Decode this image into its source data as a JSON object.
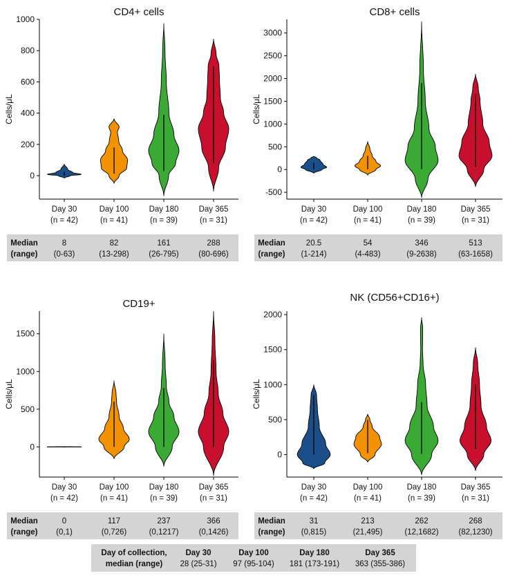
{
  "colors": {
    "day30": "#1b4f8a",
    "day100": "#f39200",
    "day180": "#3aaa35",
    "day365": "#c8102e",
    "table_bg": "#d4d4d4"
  },
  "chart_data": [
    {
      "type": "violin",
      "title": "CD4+ cells",
      "ylabel": "Cells/μL",
      "ylim": [
        -150,
        1000
      ],
      "yticks": [
        0,
        200,
        400,
        600,
        800,
        1000
      ],
      "categories": [
        {
          "day": "Day 30",
          "n": "(n = 42)"
        },
        {
          "day": "Day 100",
          "n": "(n = 41)"
        },
        {
          "day": "Day 180",
          "n": "(n = 39)"
        },
        {
          "day": "Day 365",
          "n": "(n = 31)"
        }
      ],
      "series": [
        {
          "color": "#1b4f8a",
          "range": [
            -15,
            75
          ],
          "whisker": [
            0,
            25
          ],
          "profile": [
            [
              -15,
              0
            ],
            [
              0,
              0.35
            ],
            [
              8,
              1
            ],
            [
              20,
              0.5
            ],
            [
              40,
              0.2
            ],
            [
              75,
              0
            ]
          ]
        },
        {
          "color": "#f39200",
          "range": [
            -50,
            365
          ],
          "whisker": [
            13,
            180
          ],
          "profile": [
            [
              -50,
              0
            ],
            [
              0,
              0.3
            ],
            [
              50,
              0.75
            ],
            [
              100,
              0.8
            ],
            [
              160,
              0.5
            ],
            [
              220,
              0.28
            ],
            [
              280,
              0.2
            ],
            [
              310,
              0.3
            ],
            [
              365,
              0
            ]
          ]
        },
        {
          "color": "#3aaa35",
          "range": [
            -130,
            975
          ],
          "whisker": [
            30,
            390
          ],
          "profile": [
            [
              -130,
              0
            ],
            [
              0,
              0.28
            ],
            [
              80,
              0.7
            ],
            [
              160,
              0.9
            ],
            [
              260,
              0.6
            ],
            [
              400,
              0.3
            ],
            [
              600,
              0.15
            ],
            [
              800,
              0.07
            ],
            [
              975,
              0
            ]
          ]
        },
        {
          "color": "#c8102e",
          "range": [
            -100,
            875
          ],
          "whisker": [
            80,
            700
          ],
          "profile": [
            [
              -100,
              0
            ],
            [
              50,
              0.3
            ],
            [
              180,
              0.7
            ],
            [
              300,
              0.9
            ],
            [
              400,
              0.6
            ],
            [
              500,
              0.4
            ],
            [
              620,
              0.35
            ],
            [
              700,
              0.32
            ],
            [
              780,
              0.15
            ],
            [
              875,
              0
            ]
          ]
        }
      ],
      "table": {
        "label1": "Median",
        "label2": "(range)",
        "rows": [
          [
            "8",
            "(0-63)"
          ],
          [
            "82",
            "(13-298)"
          ],
          [
            "161",
            "(26-795)"
          ],
          [
            "288",
            "(80-696)"
          ]
        ]
      }
    },
    {
      "type": "violin",
      "title": "CD8+ cells",
      "ylabel": "Cells/μL",
      "ylim": [
        -650,
        3300
      ],
      "yticks": [
        -500,
        0,
        500,
        1000,
        1500,
        2000,
        2500,
        3000
      ],
      "categories": [
        {
          "day": "Day 30",
          "n": "(n = 42)"
        },
        {
          "day": "Day 100",
          "n": "(n = 41)"
        },
        {
          "day": "Day 180",
          "n": "(n = 39)"
        },
        {
          "day": "Day 365",
          "n": "(n = 31)"
        }
      ],
      "series": [
        {
          "color": "#1b4f8a",
          "range": [
            -80,
            290
          ],
          "whisker": [
            1,
            150
          ],
          "profile": [
            [
              -80,
              0
            ],
            [
              0,
              0.45
            ],
            [
              50,
              0.7
            ],
            [
              120,
              0.5
            ],
            [
              200,
              0.35
            ],
            [
              260,
              0.15
            ],
            [
              290,
              0
            ]
          ]
        },
        {
          "color": "#f39200",
          "range": [
            -120,
            620
          ],
          "whisker": [
            4,
            300
          ],
          "profile": [
            [
              -120,
              0
            ],
            [
              0,
              0.45
            ],
            [
              80,
              0.7
            ],
            [
              180,
              0.45
            ],
            [
              300,
              0.25
            ],
            [
              450,
              0.12
            ],
            [
              620,
              0
            ]
          ]
        },
        {
          "color": "#3aaa35",
          "range": [
            -620,
            3250
          ],
          "whisker": [
            9,
            1900
          ],
          "profile": [
            [
              -620,
              0
            ],
            [
              -200,
              0.35
            ],
            [
              200,
              0.9
            ],
            [
              500,
              0.75
            ],
            [
              900,
              0.4
            ],
            [
              1500,
              0.2
            ],
            [
              2200,
              0.1
            ],
            [
              3250,
              0
            ]
          ]
        },
        {
          "color": "#c8102e",
          "range": [
            -380,
            2100
          ],
          "whisker": [
            63,
            1650
          ],
          "profile": [
            [
              -380,
              0
            ],
            [
              0,
              0.45
            ],
            [
              300,
              0.9
            ],
            [
              600,
              0.75
            ],
            [
              1000,
              0.4
            ],
            [
              1500,
              0.25
            ],
            [
              1800,
              0.15
            ],
            [
              2100,
              0
            ]
          ]
        }
      ],
      "table": {
        "label1": "Median",
        "label2": "(range)",
        "rows": [
          [
            "20.5",
            "(1-214)"
          ],
          [
            "54",
            "(4-483)"
          ],
          [
            "346",
            "(9-2638)"
          ],
          [
            "513",
            "(63-1658)"
          ]
        ]
      }
    },
    {
      "type": "violin",
      "title": "CD19+",
      "ylabel": "Cells/μL",
      "ylim": [
        -400,
        1800
      ],
      "yticks": [
        0,
        500,
        1000,
        1500
      ],
      "categories": [
        {
          "day": "Day 30",
          "n": "(n = 42)"
        },
        {
          "day": "Day 100",
          "n": "(n = 41)"
        },
        {
          "day": "Day 180",
          "n": "(n = 39)"
        },
        {
          "day": "Day 365",
          "n": "(n = 31)"
        }
      ],
      "series": [
        {
          "color": "#1b4f8a",
          "range": [
            -3,
            3
          ],
          "whisker": [
            0,
            1
          ],
          "profile": [
            [
              -3,
              0
            ],
            [
              -1,
              1
            ],
            [
              1,
              1
            ],
            [
              3,
              0
            ]
          ]
        },
        {
          "color": "#f39200",
          "range": [
            -160,
            880
          ],
          "whisker": [
            0,
            600
          ],
          "profile": [
            [
              -160,
              0
            ],
            [
              0,
              0.6
            ],
            [
              100,
              0.9
            ],
            [
              250,
              0.55
            ],
            [
              400,
              0.3
            ],
            [
              600,
              0.15
            ],
            [
              700,
              0.12
            ],
            [
              880,
              0
            ]
          ]
        },
        {
          "color": "#3aaa35",
          "range": [
            -260,
            1500
          ],
          "whisker": [
            0,
            780
          ],
          "profile": [
            [
              -260,
              0
            ],
            [
              0,
              0.5
            ],
            [
              200,
              0.9
            ],
            [
              400,
              0.6
            ],
            [
              600,
              0.3
            ],
            [
              800,
              0.15
            ],
            [
              1100,
              0.08
            ],
            [
              1500,
              0
            ]
          ]
        },
        {
          "color": "#c8102e",
          "range": [
            -380,
            1800
          ],
          "whisker": [
            0,
            1150
          ],
          "profile": [
            [
              -380,
              0
            ],
            [
              0,
              0.6
            ],
            [
              200,
              0.9
            ],
            [
              450,
              0.55
            ],
            [
              700,
              0.28
            ],
            [
              1000,
              0.15
            ],
            [
              1400,
              0.08
            ],
            [
              1800,
              0
            ]
          ]
        }
      ],
      "table": {
        "label1": "Median",
        "label2": "(range)",
        "rows": [
          [
            "0",
            "(0,1)"
          ],
          [
            "117",
            "(0,726)"
          ],
          [
            "237",
            "(0,1217)"
          ],
          [
            "366",
            "(0,1426)"
          ]
        ]
      }
    },
    {
      "type": "violin",
      "title": "NK (CD56+CD16+)",
      "ylabel": "Cells/μL",
      "ylim": [
        -320,
        2050
      ],
      "yticks": [
        0,
        500,
        1000,
        1500,
        2000
      ],
      "categories": [
        {
          "day": "Day 30",
          "n": "(n = 42)"
        },
        {
          "day": "Day 100",
          "n": "(n = 41)"
        },
        {
          "day": "Day 180",
          "n": "(n = 39)"
        },
        {
          "day": "Day 365",
          "n": "(n = 31)"
        }
      ],
      "series": [
        {
          "color": "#1b4f8a",
          "range": [
            -200,
            1000
          ],
          "whisker": [
            0,
            850
          ],
          "profile": [
            [
              -200,
              0
            ],
            [
              -120,
              0.6
            ],
            [
              0,
              0.9
            ],
            [
              150,
              0.65
            ],
            [
              400,
              0.3
            ],
            [
              650,
              0.2
            ],
            [
              850,
              0.15
            ],
            [
              1000,
              0
            ]
          ]
        },
        {
          "color": "#f39200",
          "range": [
            -110,
            580
          ],
          "whisker": [
            21,
            495
          ],
          "profile": [
            [
              -110,
              0
            ],
            [
              0,
              0.4
            ],
            [
              150,
              0.75
            ],
            [
              250,
              0.65
            ],
            [
              400,
              0.25
            ],
            [
              500,
              0.12
            ],
            [
              580,
              0
            ]
          ]
        },
        {
          "color": "#3aaa35",
          "range": [
            -290,
            1960
          ],
          "whisker": [
            12,
            750
          ],
          "profile": [
            [
              -290,
              0
            ],
            [
              0,
              0.55
            ],
            [
              200,
              0.9
            ],
            [
              400,
              0.65
            ],
            [
              700,
              0.3
            ],
            [
              1000,
              0.22
            ],
            [
              1300,
              0.08
            ],
            [
              1500,
              0.05
            ],
            [
              1800,
              0.06
            ],
            [
              1960,
              0
            ]
          ]
        },
        {
          "color": "#c8102e",
          "range": [
            -230,
            1530
          ],
          "whisker": [
            82,
            1000
          ],
          "profile": [
            [
              -230,
              0
            ],
            [
              0,
              0.45
            ],
            [
              200,
              0.85
            ],
            [
              400,
              0.6
            ],
            [
              700,
              0.3
            ],
            [
              1000,
              0.22
            ],
            [
              1300,
              0.12
            ],
            [
              1530,
              0
            ]
          ]
        }
      ],
      "table": {
        "label1": "Median",
        "label2": "(range)",
        "rows": [
          [
            "31",
            "(0,815)"
          ],
          [
            "213",
            "(21,495)"
          ],
          [
            "262",
            "(12,1682)"
          ],
          [
            "268",
            "(82,1230)"
          ]
        ]
      }
    }
  ],
  "collection_table": {
    "label1": "Day of collection,",
    "label2": "median (range)",
    "days": [
      "Day 30",
      "Day 100",
      "Day 180",
      "Day 365"
    ],
    "values": [
      "28 (25-31)",
      "97 (95-104)",
      "181 (173-191)",
      "363 (355-386)"
    ]
  }
}
